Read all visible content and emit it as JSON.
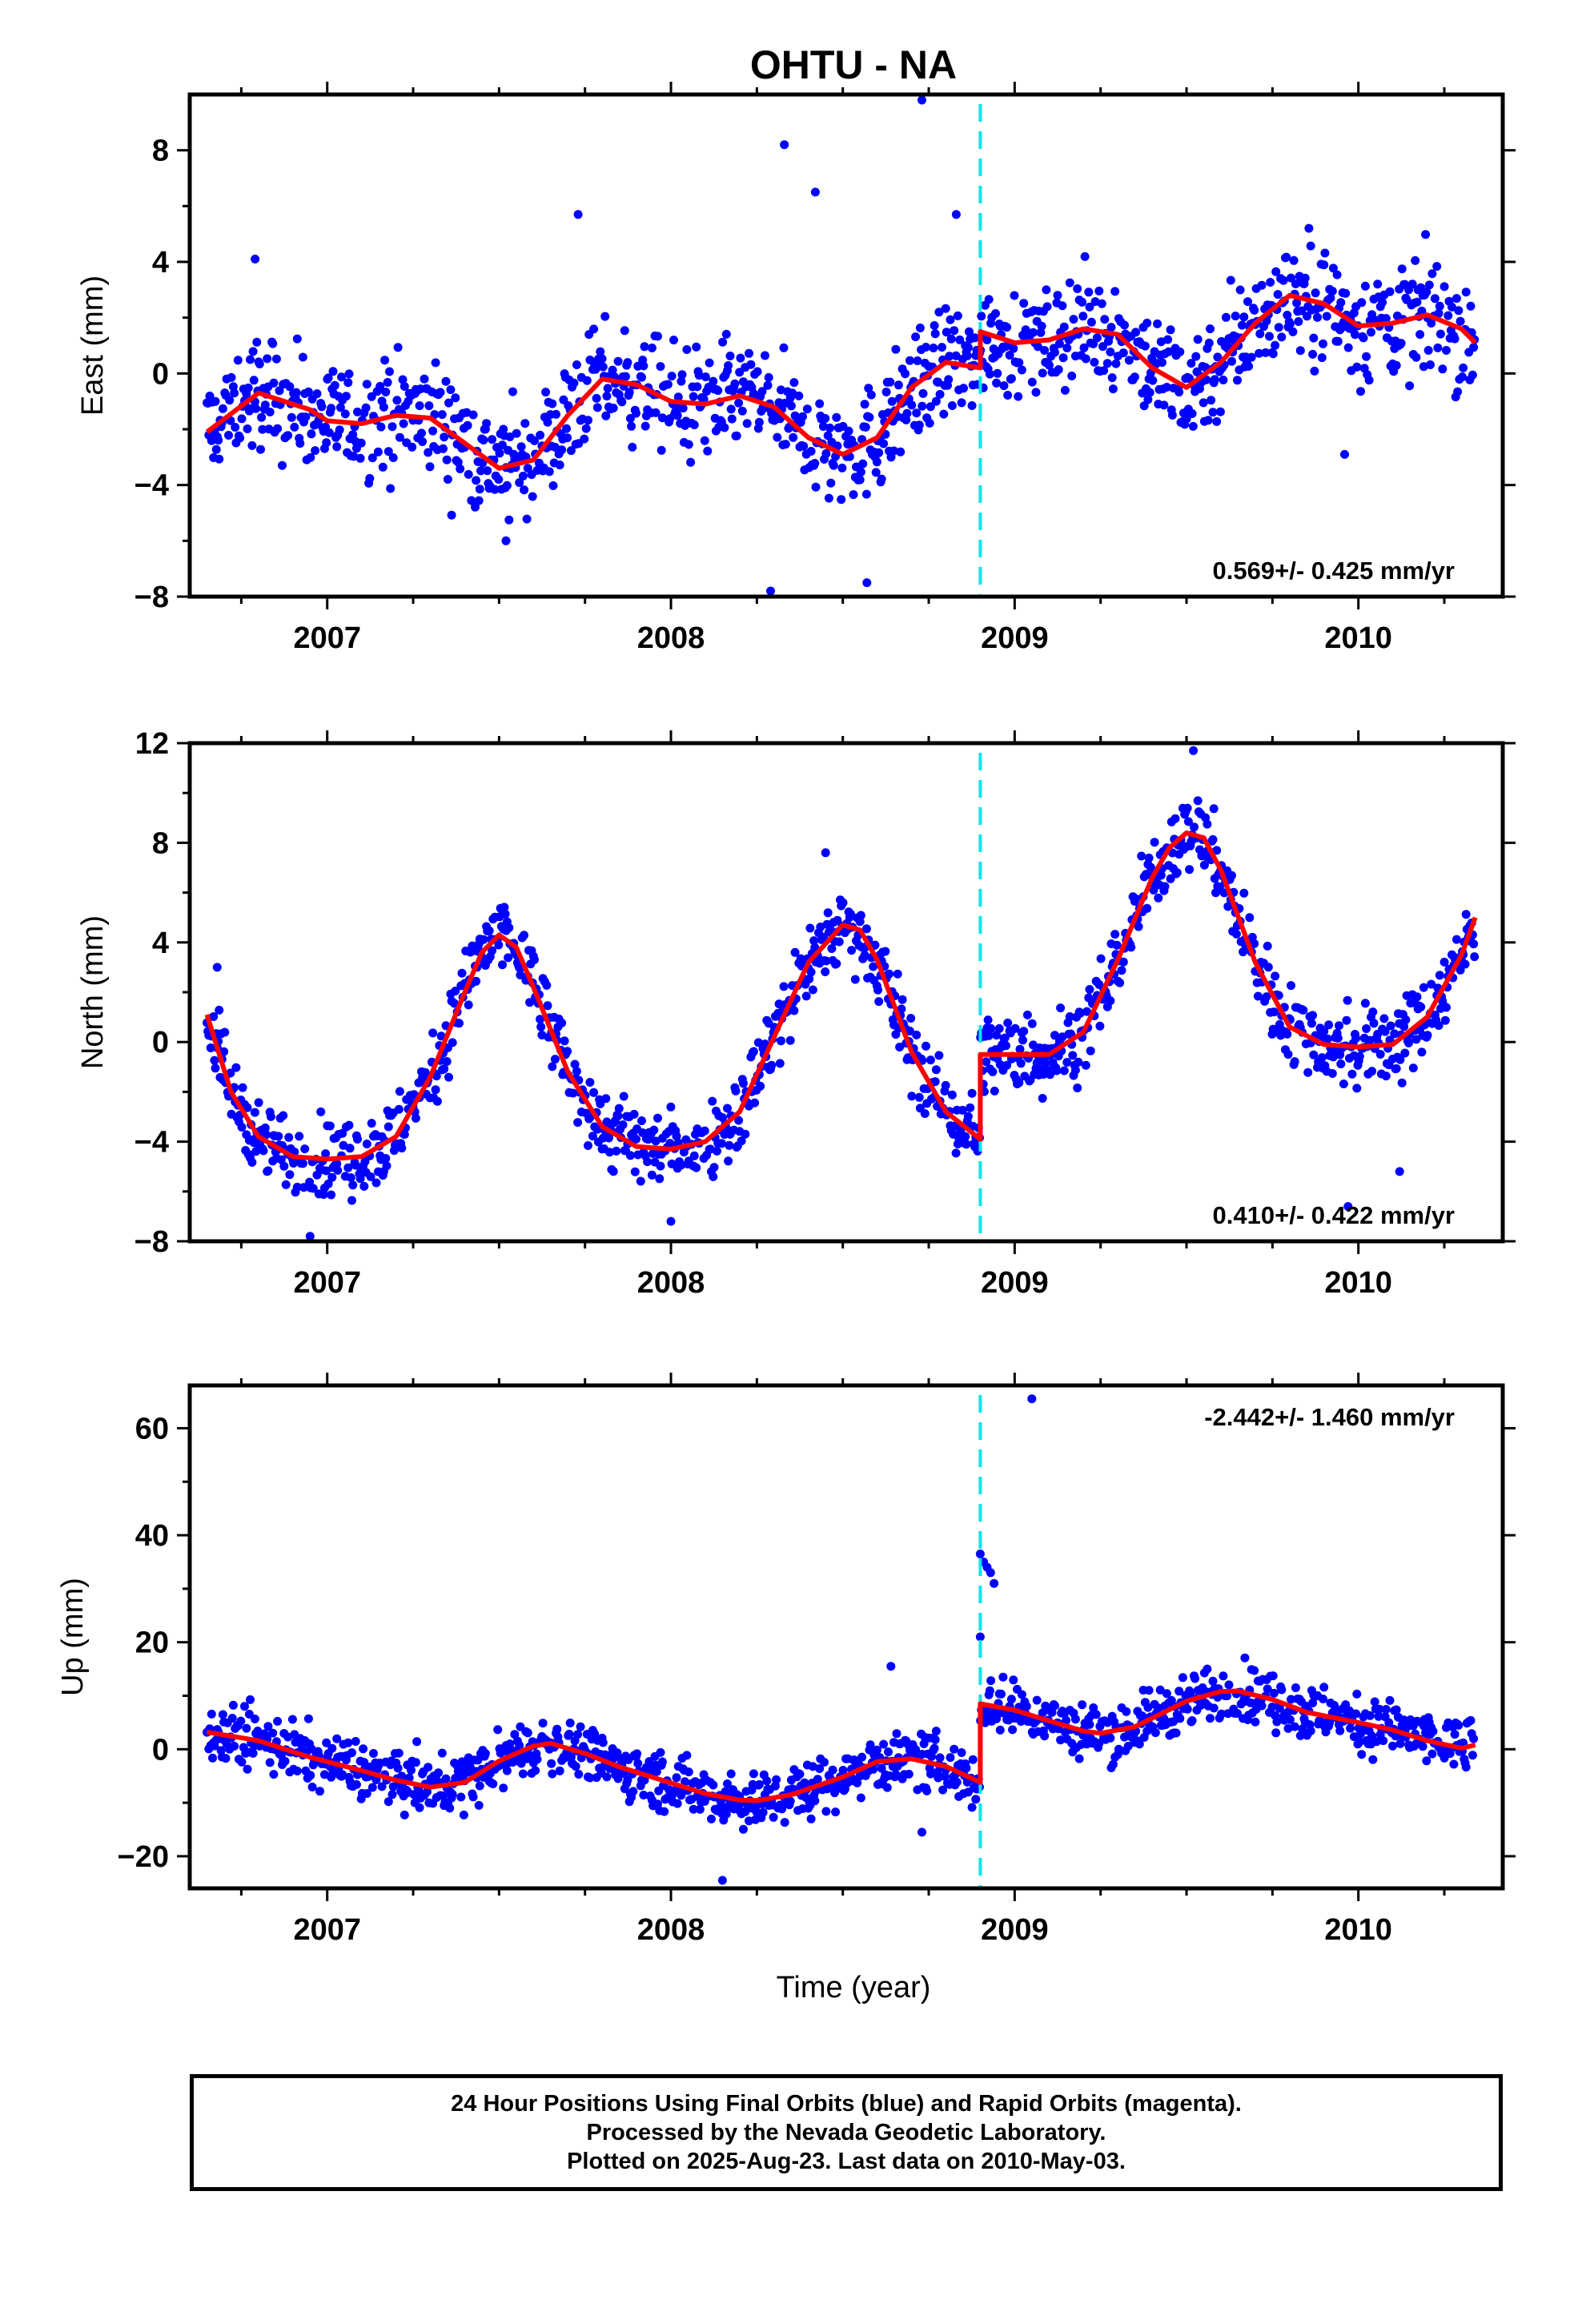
{
  "title": "OHTU - NA",
  "time_axis_label": "Time (year)",
  "colors": {
    "final_orbit_points": "#0000ff",
    "model_fit": "#ff0000",
    "offset_marker": "#00e5ee",
    "frame": "#000000"
  },
  "footer": {
    "line1": "24 Hour Positions Using Final Orbits (blue) and Rapid Orbits (magenta).",
    "line2": "Processed by the Nevada Geodetic Laboratory.",
    "line3": "Plotted on 2025-Aug-23. Last data on 2010-May-03."
  },
  "chart_data": [
    {
      "type": "scatter",
      "name": "east",
      "ylabel": "East (mm)",
      "xlim": [
        2006.6,
        2010.42
      ],
      "ylim": [
        -8,
        10
      ],
      "x_ticks": [
        2007,
        2008,
        2009,
        2010
      ],
      "y_ticks": [
        -8,
        -4,
        0,
        4,
        8
      ],
      "annotation": "0.569+/- 0.425 mm/yr",
      "annotation_position": "bottom-right",
      "offset_epoch": 2008.9,
      "points_spread": 1.4,
      "outliers": [
        [
          2008.33,
          8.2
        ],
        [
          2008.42,
          6.5
        ],
        [
          2008.73,
          9.8
        ],
        [
          2008.83,
          5.7
        ],
        [
          2007.73,
          5.7
        ],
        [
          2006.79,
          4.1
        ],
        [
          2008.29,
          -7.8
        ],
        [
          2008.57,
          -7.5
        ],
        [
          2009.96,
          -2.9
        ],
        [
          2007.52,
          -6.0
        ]
      ],
      "model": {
        "x": [
          2006.65,
          2006.8,
          2006.95,
          2007.0,
          2007.1,
          2007.2,
          2007.3,
          2007.4,
          2007.5,
          2007.6,
          2007.7,
          2007.8,
          2007.9,
          2008.0,
          2008.1,
          2008.2,
          2008.3,
          2008.4,
          2008.5,
          2008.6,
          2008.7,
          2008.8,
          2008.9
        ],
        "y": [
          -2.1,
          -0.7,
          -1.3,
          -1.7,
          -1.8,
          -1.5,
          -1.6,
          -2.5,
          -3.4,
          -3.1,
          -1.5,
          -0.2,
          -0.4,
          -1.0,
          -1.1,
          -0.8,
          -1.2,
          -2.3,
          -2.9,
          -2.3,
          -0.5,
          0.4,
          0.2
        ]
      },
      "model_after": {
        "x": [
          2008.9,
          2009.0,
          2009.1,
          2009.2,
          2009.3,
          2009.4,
          2009.5,
          2009.6,
          2009.7,
          2009.8,
          2009.9,
          2010.0,
          2010.1,
          2010.2,
          2010.3,
          2010.34
        ],
        "y": [
          1.5,
          1.1,
          1.2,
          1.6,
          1.4,
          0.2,
          -0.5,
          0.4,
          1.8,
          2.8,
          2.5,
          1.7,
          1.8,
          2.1,
          1.6,
          1.1
        ]
      }
    },
    {
      "type": "scatter",
      "name": "north",
      "ylabel": "North (mm)",
      "xlim": [
        2006.6,
        2010.42
      ],
      "ylim": [
        -8,
        12
      ],
      "x_ticks": [
        2007,
        2008,
        2009,
        2010
      ],
      "y_ticks": [
        -8,
        -4,
        0,
        4,
        8,
        12
      ],
      "annotation": "0.410+/- 0.422 mm/yr",
      "annotation_position": "bottom-right",
      "offset_epoch": 2008.9,
      "points_spread": 1.1,
      "outliers": [
        [
          2006.68,
          3.0
        ],
        [
          2006.95,
          -7.8
        ],
        [
          2008.0,
          -7.2
        ],
        [
          2008.45,
          7.6
        ],
        [
          2009.52,
          11.7
        ],
        [
          2009.97,
          -6.6
        ],
        [
          2010.12,
          -5.2
        ]
      ],
      "model": {
        "x": [
          2006.65,
          2006.72,
          2006.8,
          2006.9,
          2007.0,
          2007.1,
          2007.2,
          2007.3,
          2007.4,
          2007.45,
          2007.5,
          2007.55,
          2007.6,
          2007.7,
          2007.8,
          2007.9,
          2008.0,
          2008.1,
          2008.2,
          2008.3,
          2008.4,
          2008.5,
          2008.55,
          2008.6,
          2008.7,
          2008.8,
          2008.9
        ],
        "y": [
          1.1,
          -2.0,
          -3.8,
          -4.6,
          -4.7,
          -4.6,
          -3.8,
          -1.4,
          2.0,
          3.6,
          4.3,
          3.8,
          2.2,
          -1.2,
          -3.4,
          -4.2,
          -4.3,
          -4.0,
          -2.8,
          0.2,
          3.2,
          4.7,
          4.5,
          3.3,
          -0.4,
          -2.8,
          -3.9
        ]
      },
      "model_after": {
        "x": [
          2008.9,
          2009.0,
          2009.1,
          2009.2,
          2009.3,
          2009.4,
          2009.45,
          2009.5,
          2009.55,
          2009.6,
          2009.7,
          2009.8,
          2009.9,
          2010.0,
          2010.1,
          2010.2,
          2010.3,
          2010.34
        ],
        "y": [
          -0.5,
          -0.5,
          -0.5,
          0.4,
          3.3,
          6.6,
          7.8,
          8.4,
          8.2,
          6.9,
          3.2,
          0.6,
          -0.1,
          -0.2,
          -0.1,
          1.0,
          3.5,
          5.0
        ]
      }
    },
    {
      "type": "scatter",
      "name": "up",
      "ylabel": "Up (mm)",
      "xlim": [
        2006.6,
        2010.42
      ],
      "ylim": [
        -26,
        68
      ],
      "x_ticks": [
        2007,
        2008,
        2009,
        2010
      ],
      "y_ticks": [
        -20,
        0,
        20,
        40,
        60
      ],
      "annotation": "-2.442+/- 1.460 mm/yr",
      "annotation_position": "top-right",
      "offset_epoch": 2008.9,
      "points_spread": 3.8,
      "outliers": [
        [
          2008.9,
          36.5
        ],
        [
          2008.91,
          35.0
        ],
        [
          2008.92,
          34.0
        ],
        [
          2008.93,
          33.0
        ],
        [
          2008.94,
          31.0
        ],
        [
          2008.9,
          21.0
        ],
        [
          2009.05,
          65.5
        ],
        [
          2008.15,
          -24.5
        ],
        [
          2008.73,
          -15.5
        ],
        [
          2008.64,
          15.5
        ]
      ],
      "model": {
        "x": [
          2006.65,
          2006.8,
          2006.95,
          2007.1,
          2007.2,
          2007.3,
          2007.4,
          2007.5,
          2007.6,
          2007.65,
          2007.75,
          2007.85,
          2008.0,
          2008.1,
          2008.2,
          2008.25,
          2008.35,
          2008.5,
          2008.6,
          2008.7,
          2008.8,
          2008.9
        ],
        "y": [
          3.2,
          1.6,
          -1.5,
          -4.0,
          -5.8,
          -7.1,
          -6.2,
          -2.2,
          0.6,
          1.1,
          -0.8,
          -3.3,
          -6.3,
          -8.3,
          -9.5,
          -9.6,
          -8.5,
          -5.2,
          -2.3,
          -1.8,
          -3.2,
          -6.2
        ]
      },
      "model_after": {
        "x": [
          2008.9,
          2009.0,
          2009.1,
          2009.2,
          2009.25,
          2009.35,
          2009.5,
          2009.6,
          2009.65,
          2009.75,
          2009.85,
          2010.0,
          2010.1,
          2010.2,
          2010.3,
          2010.34
        ],
        "y": [
          8.5,
          7.3,
          5.3,
          3.4,
          3.0,
          4.2,
          9.0,
          10.8,
          10.9,
          9.3,
          6.9,
          5.0,
          3.6,
          1.6,
          0.2,
          0.8
        ]
      }
    }
  ]
}
